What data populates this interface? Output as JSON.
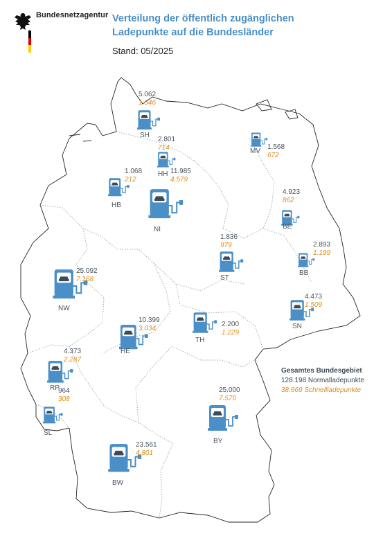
{
  "header": {
    "agency_name": "Bundesnetzagentur",
    "title_line1": "Verteilung der öffentlich zugänglichen",
    "title_line2": "Ladepunkte auf die Bundesländer",
    "stand": "Stand: 05/2025"
  },
  "colors": {
    "icon_blue": "#4a8fc7",
    "schnell_orange": "#e08c1a",
    "border_gray": "#9aa3aa",
    "flag_black": "#000000",
    "flag_red": "#dd0000",
    "flag_gold": "#ffce00"
  },
  "states": [
    {
      "code": "SH",
      "normal": "5.062",
      "schnell": "1.546"
    },
    {
      "code": "HH",
      "normal": "2.801",
      "schnell": "714"
    },
    {
      "code": "MV",
      "normal": "1.568",
      "schnell": "672"
    },
    {
      "code": "HB",
      "normal": "1.068",
      "schnell": "212"
    },
    {
      "code": "NI",
      "normal": "11.985",
      "schnell": "4.579"
    },
    {
      "code": "BE",
      "normal": "4.923",
      "schnell": "862"
    },
    {
      "code": "BB",
      "normal": "2.893",
      "schnell": "1.199"
    },
    {
      "code": "ST",
      "normal": "1.836",
      "schnell": "979"
    },
    {
      "code": "NW",
      "normal": "25.092",
      "schnell": "7.168"
    },
    {
      "code": "SN",
      "normal": "4.473",
      "schnell": "1.509"
    },
    {
      "code": "HE",
      "normal": "10.399",
      "schnell": "3.034"
    },
    {
      "code": "TH",
      "normal": "2.200",
      "schnell": "1.229"
    },
    {
      "code": "RP",
      "normal": "4.373",
      "schnell": "2.287"
    },
    {
      "code": "SL",
      "normal": "964",
      "schnell": "308"
    },
    {
      "code": "BY",
      "normal": "25.000",
      "schnell": "7.570"
    },
    {
      "code": "BW",
      "normal": "23.561",
      "schnell": "4.801"
    }
  ],
  "total": {
    "heading": "Gesamtes Bundesgebiet",
    "normal": "128.198 Normalladepunkte",
    "schnell": "38.669 Schnellladepunkte"
  }
}
